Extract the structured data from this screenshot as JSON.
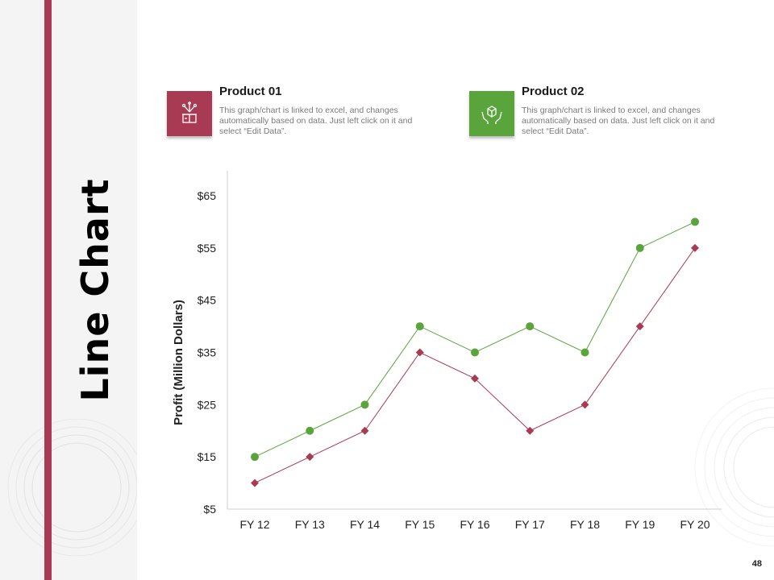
{
  "slide": {
    "title": "Line Chart",
    "page_number": "48"
  },
  "products": [
    {
      "title": "Product 01",
      "description": "This graph/chart is linked to excel, and changes automatically based on data. Just left click on it and select “Edit Data”.",
      "color": "#a83a54",
      "icon": "gift-box-icon"
    },
    {
      "title": "Product 02",
      "description": "This graph/chart is linked to excel, and changes automatically based on data. Just left click on it and select “Edit Data”.",
      "color": "#5aa43c",
      "icon": "box-hands-icon"
    }
  ],
  "chart_data": {
    "type": "line",
    "title": "",
    "xlabel": "",
    "ylabel": "Profit  (Million Dollars)",
    "categories": [
      "FY 12",
      "FY 13",
      "FY 14",
      "FY 15",
      "FY 16",
      "FY 17",
      "FY 18",
      "FY 19",
      "FY 20"
    ],
    "ylim": [
      5,
      65
    ],
    "yticks": [
      5,
      15,
      25,
      35,
      45,
      55,
      65
    ],
    "ytick_labels": [
      "$5",
      "$15",
      "$25",
      "$35",
      "$45",
      "$55",
      "$65"
    ],
    "grid": false,
    "legend": "none",
    "series": [
      {
        "values": [
          15,
          20,
          25,
          40,
          35,
          40,
          35,
          55,
          60
        ],
        "color": "#5aa43c",
        "marker": "circle"
      },
      {
        "values": [
          10,
          15,
          20,
          35,
          30,
          20,
          25,
          40,
          55
        ],
        "color": "#a83a54",
        "marker": "diamond"
      }
    ]
  }
}
